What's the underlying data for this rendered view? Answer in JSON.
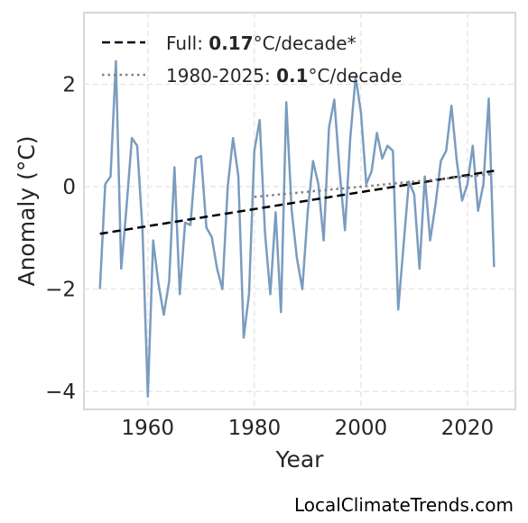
{
  "chart_data": {
    "type": "line",
    "xlabel": "Year",
    "ylabel": "Anomaly (°C)",
    "xlim": [
      1948,
      2029
    ],
    "ylim": [
      -4.35,
      3.4
    ],
    "xticks": [
      1960,
      1980,
      2000,
      2020
    ],
    "yticks": [
      -4,
      -2,
      0,
      2
    ],
    "ytick_labels": [
      "−4",
      "−2",
      "0",
      "2"
    ],
    "grid": true,
    "legend_position": "top-left",
    "colors": {
      "series": "#7a9cbf",
      "full_trend": "#000000",
      "recent_trend": "#808080"
    },
    "series": [
      {
        "x": [
          1951,
          1952,
          1953,
          1954,
          1955,
          1956,
          1957,
          1958,
          1959,
          1960,
          1961,
          1962,
          1963,
          1964,
          1965,
          1966,
          1967,
          1968,
          1969,
          1970,
          1971,
          1972,
          1973,
          1974,
          1975,
          1976,
          1977,
          1978,
          1979,
          1980,
          1981,
          1982,
          1983,
          1984,
          1985,
          1986,
          1987,
          1988,
          1989,
          1990,
          1991,
          1992,
          1993,
          1994,
          1995,
          1996,
          1997,
          1998,
          1999,
          2000,
          2001,
          2002,
          2003,
          2004,
          2005,
          2006,
          2007,
          2008,
          2009,
          2010,
          2011,
          2012,
          2013,
          2014,
          2015,
          2016,
          2017,
          2018,
          2019,
          2020,
          2021,
          2022,
          2023,
          2024,
          2025
        ],
        "values": [
          -2.0,
          0.05,
          0.2,
          2.45,
          -1.6,
          -0.4,
          0.95,
          0.8,
          -0.85,
          -4.1,
          -1.05,
          -1.9,
          -2.5,
          -1.85,
          0.38,
          -2.1,
          -0.7,
          -0.75,
          0.55,
          0.6,
          -0.8,
          -0.98,
          -1.6,
          -2.0,
          0.0,
          0.95,
          0.2,
          -2.95,
          -2.1,
          0.7,
          1.3,
          -0.9,
          -2.1,
          -0.5,
          -2.45,
          1.65,
          -0.45,
          -1.4,
          -2.0,
          -0.5,
          0.5,
          0.05,
          -1.05,
          1.15,
          1.7,
          0.3,
          -0.85,
          0.95,
          2.15,
          1.45,
          0.05,
          0.3,
          1.05,
          0.55,
          0.8,
          0.7,
          -2.4,
          -1.15,
          0.1,
          -0.15,
          -1.6,
          0.2,
          -1.05,
          -0.35,
          0.5,
          0.7,
          1.58,
          0.5,
          -0.27,
          0.05,
          0.8,
          -0.47,
          0.05,
          1.72,
          -1.57
        ]
      }
    ],
    "trends": [
      {
        "label_prefix": "Full: ",
        "label_value": "0.17",
        "label_suffix": "°C/decade*",
        "x": [
          1951,
          2025
        ],
        "y": [
          -0.92,
          0.31
        ],
        "style": "dashed"
      },
      {
        "label_prefix": "1980-2025: ",
        "label_value": "0.1",
        "label_suffix": "°C/decade",
        "x": [
          1980,
          2025
        ],
        "y": [
          -0.2,
          0.25
        ],
        "style": "dotted"
      }
    ]
  },
  "source_label": "LocalClimateTrends.com"
}
